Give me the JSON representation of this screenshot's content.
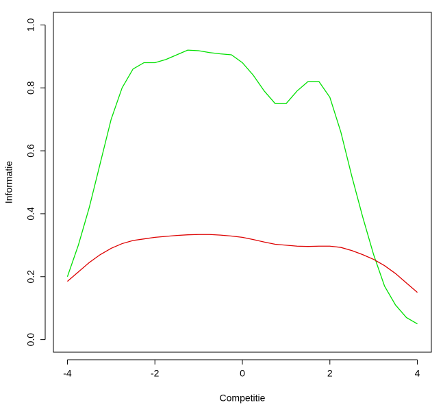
{
  "chart_data": {
    "type": "line",
    "xlabel": "Competitie",
    "ylabel": "Informatie",
    "x": [
      -4,
      -3.75,
      -3.5,
      -3.25,
      -3,
      -2.75,
      -2.5,
      -2.25,
      -2,
      -1.75,
      -1.5,
      -1.25,
      -1,
      -0.75,
      -0.5,
      -0.25,
      0,
      0.25,
      0.5,
      0.75,
      1,
      1.25,
      1.5,
      1.75,
      2,
      2.25,
      2.5,
      2.75,
      3,
      3.25,
      3.5,
      3.75,
      4
    ],
    "series": [
      {
        "color": "#00e000",
        "values": [
          0.2,
          0.3,
          0.42,
          0.56,
          0.7,
          0.8,
          0.86,
          0.88,
          0.88,
          0.89,
          0.905,
          0.92,
          0.918,
          0.912,
          0.908,
          0.905,
          0.88,
          0.84,
          0.79,
          0.75,
          0.75,
          0.79,
          0.82,
          0.82,
          0.77,
          0.66,
          0.52,
          0.39,
          0.27,
          0.17,
          0.11,
          0.07,
          0.05
        ]
      },
      {
        "color": "#dd0000",
        "values": [
          0.185,
          0.215,
          0.245,
          0.27,
          0.29,
          0.305,
          0.315,
          0.32,
          0.325,
          0.328,
          0.331,
          0.333,
          0.334,
          0.334,
          0.332,
          0.329,
          0.325,
          0.318,
          0.31,
          0.303,
          0.3,
          0.297,
          0.296,
          0.297,
          0.297,
          0.293,
          0.283,
          0.27,
          0.255,
          0.235,
          0.21,
          0.18,
          0.15
        ]
      }
    ],
    "xlim": [
      -4.32,
      4.32
    ],
    "ylim": [
      -0.04,
      1.04
    ],
    "xticks": [
      -4,
      -2,
      0,
      2,
      4
    ],
    "yticks": [
      {
        "value": 0,
        "label": "0.0"
      },
      0.2,
      0.4,
      0.6,
      0.8,
      {
        "value": 1,
        "label": "1.0"
      }
    ]
  }
}
